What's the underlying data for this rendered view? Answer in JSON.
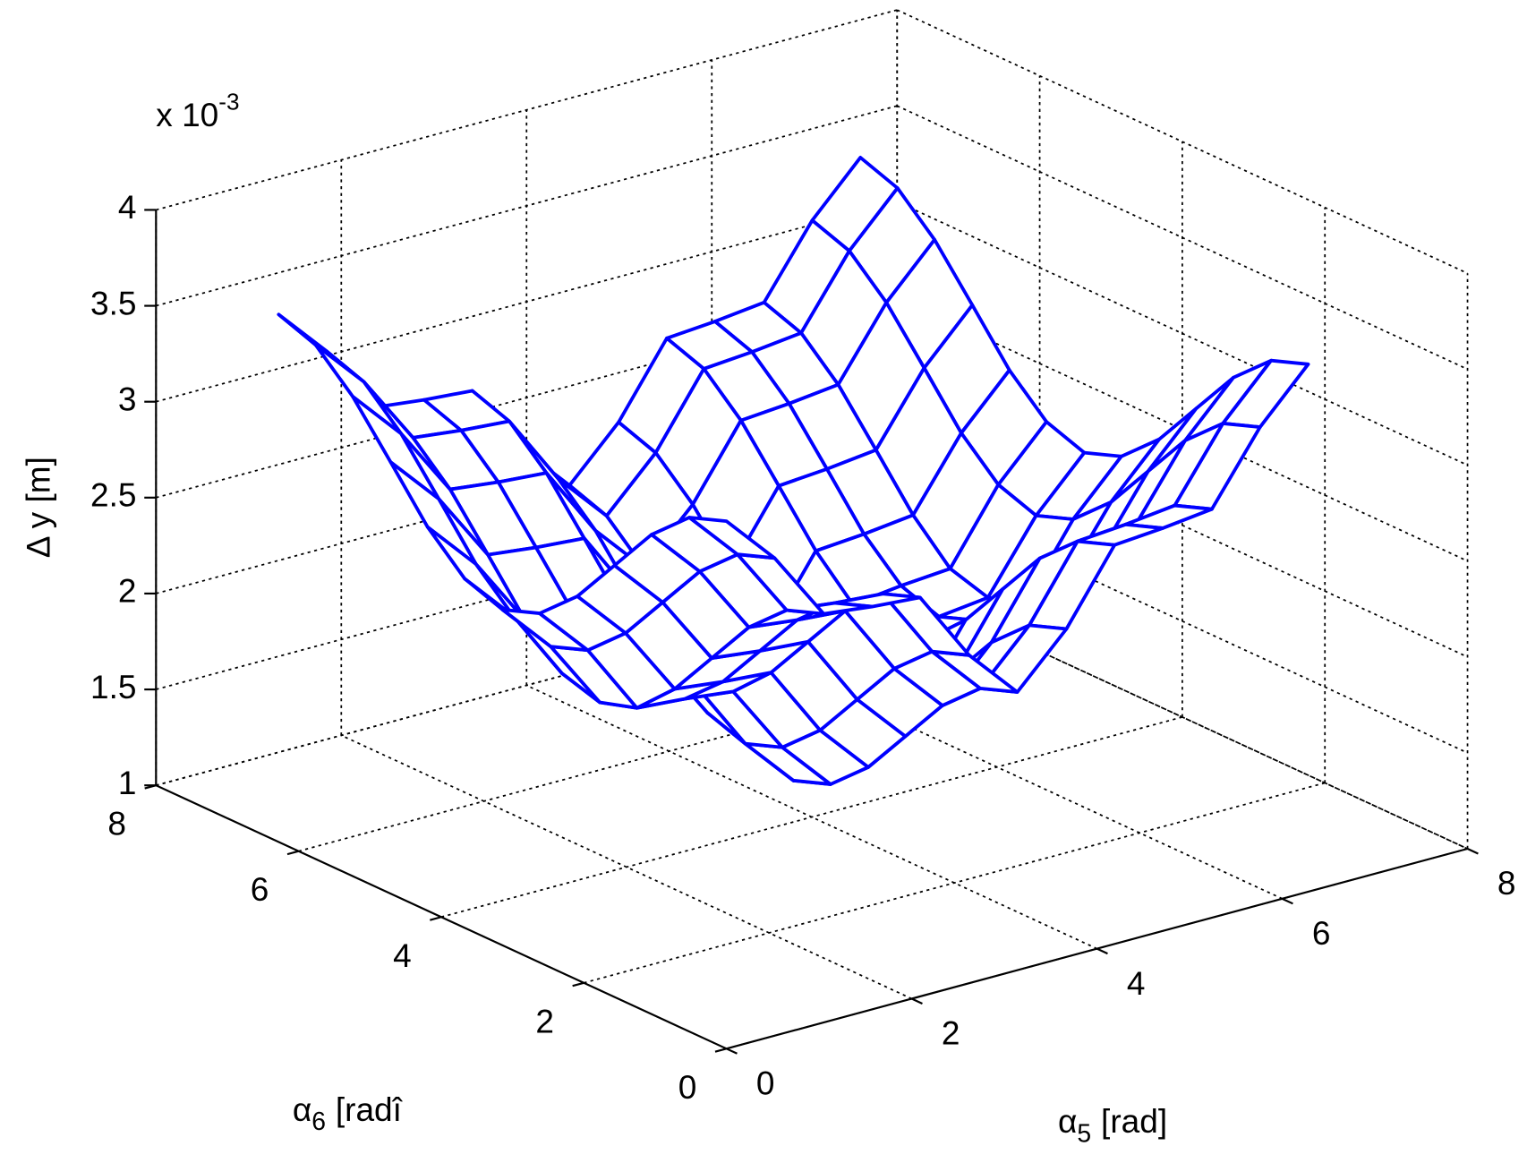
{
  "chart_data": {
    "type": "mesh3d",
    "color": "#0000ff",
    "grid": true,
    "zlabel": "Δ y [m]",
    "z_exponent_base": "x 10",
    "z_exponent": "-3",
    "xlabel": {
      "symbol": "α",
      "subscript": "5",
      "unit": "[rad]"
    },
    "ylabel": {
      "symbol": "α",
      "subscript": "6",
      "unit": "[radî"
    },
    "x": [
      0,
      0.52,
      1.05,
      1.57,
      2.09,
      2.62,
      3.14,
      3.67,
      4.19,
      4.71,
      5.24,
      5.76,
      6.28
    ],
    "y": [
      0,
      0.52,
      1.05,
      1.57,
      2.09,
      2.62,
      3.14,
      3.67,
      4.19,
      4.71,
      5.24,
      5.76,
      6.28
    ],
    "z": [
      [
        3.75,
        3.49,
        3.13,
        3.1,
        3.08,
        2.71,
        2.45,
        2.71,
        3.08,
        3.1,
        3.13,
        3.49,
        3.75
      ],
      [
        3.68,
        3.42,
        3.06,
        3.03,
        3.01,
        2.64,
        2.38,
        2.64,
        3.01,
        3.03,
        3.06,
        3.42,
        3.68
      ],
      [
        3.5,
        3.24,
        2.88,
        2.85,
        2.83,
        2.46,
        2.2,
        2.46,
        2.83,
        2.85,
        2.88,
        3.24,
        3.5
      ],
      [
        3.25,
        2.99,
        2.63,
        2.6,
        2.58,
        2.21,
        1.95,
        2.21,
        2.58,
        2.6,
        2.63,
        2.99,
        3.25
      ],
      [
        3.0,
        2.74,
        2.38,
        2.35,
        2.33,
        1.96,
        1.7,
        1.96,
        2.33,
        2.35,
        2.38,
        2.74,
        3.0
      ],
      [
        2.82,
        2.56,
        2.19,
        2.17,
        2.14,
        1.78,
        1.52,
        1.78,
        2.14,
        2.17,
        2.19,
        2.56,
        2.82
      ],
      [
        2.75,
        2.49,
        2.13,
        2.1,
        2.08,
        1.71,
        1.45,
        1.71,
        2.08,
        2.1,
        2.13,
        2.49,
        2.75
      ],
      [
        2.82,
        2.56,
        2.19,
        2.17,
        2.14,
        1.78,
        1.52,
        1.78,
        2.14,
        2.17,
        2.19,
        2.56,
        2.82
      ],
      [
        3.0,
        2.74,
        2.38,
        2.35,
        2.33,
        1.96,
        1.7,
        1.96,
        2.33,
        2.35,
        2.38,
        2.74,
        3.0
      ],
      [
        3.25,
        2.99,
        2.63,
        2.6,
        2.58,
        2.21,
        1.95,
        2.21,
        2.58,
        2.6,
        2.63,
        2.99,
        3.25
      ],
      [
        3.5,
        3.24,
        2.88,
        2.85,
        2.83,
        2.46,
        2.2,
        2.46,
        2.83,
        2.85,
        2.88,
        3.24,
        3.5
      ],
      [
        3.68,
        3.42,
        3.06,
        3.03,
        3.01,
        2.64,
        2.38,
        2.64,
        3.01,
        3.03,
        3.06,
        3.42,
        3.68
      ],
      [
        3.75,
        3.49,
        3.13,
        3.1,
        3.08,
        2.71,
        2.45,
        2.71,
        3.08,
        3.1,
        3.13,
        3.49,
        3.75
      ]
    ],
    "xlim": [
      0,
      8
    ],
    "ylim": [
      0,
      8
    ],
    "zlim": [
      1,
      4
    ],
    "xticks": [
      0,
      2,
      4,
      6,
      8
    ],
    "yticks": [
      0,
      2,
      4,
      6,
      8
    ],
    "zticks": [
      1,
      1.5,
      2,
      2.5,
      3,
      3.5,
      4
    ]
  }
}
